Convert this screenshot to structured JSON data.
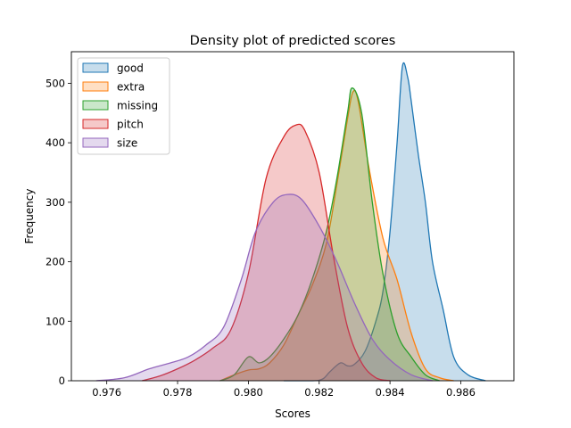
{
  "chart_data": {
    "type": "area",
    "title": "Density plot of predicted scores",
    "xlabel": "Scores",
    "ylabel": "Frequency",
    "xlim": [
      0.975,
      0.9875
    ],
    "ylim": [
      0,
      553
    ],
    "xticks": [
      0.976,
      0.978,
      0.98,
      0.982,
      0.984,
      0.986
    ],
    "xtick_labels": [
      "0.976",
      "0.978",
      "0.980",
      "0.982",
      "0.984",
      "0.986"
    ],
    "yticks": [
      0,
      100,
      200,
      300,
      400,
      500
    ],
    "ytick_labels": [
      "0",
      "100",
      "200",
      "300",
      "400",
      "500"
    ],
    "grid": false,
    "legend_position": "upper-left",
    "series": [
      {
        "name": "good",
        "color": "#1f77b4",
        "points": [
          [
            0.981,
            0
          ],
          [
            0.9818,
            0
          ],
          [
            0.9821,
            3
          ],
          [
            0.9823,
            15
          ],
          [
            0.9826,
            30
          ],
          [
            0.9828,
            25
          ],
          [
            0.983,
            28
          ],
          [
            0.9833,
            50
          ],
          [
            0.9836,
            100
          ],
          [
            0.9838,
            150
          ],
          [
            0.984,
            250
          ],
          [
            0.9842,
            400
          ],
          [
            0.98435,
            528
          ],
          [
            0.9845,
            510
          ],
          [
            0.9846,
            470
          ],
          [
            0.9848,
            380
          ],
          [
            0.985,
            300
          ],
          [
            0.9852,
            200
          ],
          [
            0.9855,
            120
          ],
          [
            0.9858,
            40
          ],
          [
            0.9862,
            10
          ],
          [
            0.9867,
            0
          ]
        ]
      },
      {
        "name": "extra",
        "color": "#ff7f0e",
        "points": [
          [
            0.9792,
            0
          ],
          [
            0.9796,
            10
          ],
          [
            0.98,
            18
          ],
          [
            0.9803,
            20
          ],
          [
            0.9806,
            30
          ],
          [
            0.981,
            60
          ],
          [
            0.9814,
            110
          ],
          [
            0.9818,
            160
          ],
          [
            0.9822,
            230
          ],
          [
            0.9825,
            330
          ],
          [
            0.9828,
            440
          ],
          [
            0.98295,
            485
          ],
          [
            0.9831,
            470
          ],
          [
            0.9834,
            360
          ],
          [
            0.9838,
            240
          ],
          [
            0.9842,
            170
          ],
          [
            0.9846,
            80
          ],
          [
            0.985,
            20
          ],
          [
            0.9854,
            5
          ],
          [
            0.9858,
            0
          ]
        ]
      },
      {
        "name": "missing",
        "color": "#2ca02c",
        "points": [
          [
            0.9792,
            0
          ],
          [
            0.9796,
            10
          ],
          [
            0.98,
            40
          ],
          [
            0.9803,
            30
          ],
          [
            0.9806,
            40
          ],
          [
            0.981,
            70
          ],
          [
            0.9814,
            110
          ],
          [
            0.9818,
            170
          ],
          [
            0.9822,
            250
          ],
          [
            0.9825,
            340
          ],
          [
            0.9828,
            450
          ],
          [
            0.98293,
            492
          ],
          [
            0.9832,
            450
          ],
          [
            0.9835,
            300
          ],
          [
            0.9838,
            180
          ],
          [
            0.9842,
            80
          ],
          [
            0.9846,
            40
          ],
          [
            0.985,
            10
          ],
          [
            0.9854,
            0
          ]
        ]
      },
      {
        "name": "pitch",
        "color": "#d62728",
        "points": [
          [
            0.977,
            0
          ],
          [
            0.9775,
            8
          ],
          [
            0.978,
            20
          ],
          [
            0.9785,
            35
          ],
          [
            0.979,
            55
          ],
          [
            0.9795,
            85
          ],
          [
            0.98,
            180
          ],
          [
            0.9805,
            340
          ],
          [
            0.981,
            410
          ],
          [
            0.98135,
            430
          ],
          [
            0.9816,
            420
          ],
          [
            0.982,
            350
          ],
          [
            0.9824,
            210
          ],
          [
            0.9828,
            90
          ],
          [
            0.9832,
            30
          ],
          [
            0.9836,
            5
          ],
          [
            0.984,
            0
          ]
        ]
      },
      {
        "name": "size",
        "color": "#9467bd",
        "points": [
          [
            0.9757,
            0
          ],
          [
            0.9765,
            5
          ],
          [
            0.9772,
            20
          ],
          [
            0.9778,
            30
          ],
          [
            0.9783,
            40
          ],
          [
            0.9788,
            60
          ],
          [
            0.9793,
            90
          ],
          [
            0.9798,
            170
          ],
          [
            0.9802,
            250
          ],
          [
            0.9807,
            300
          ],
          [
            0.9811,
            313
          ],
          [
            0.9815,
            305
          ],
          [
            0.982,
            260
          ],
          [
            0.9825,
            200
          ],
          [
            0.983,
            130
          ],
          [
            0.9835,
            70
          ],
          [
            0.984,
            35
          ],
          [
            0.9846,
            10
          ],
          [
            0.9852,
            0
          ]
        ]
      }
    ]
  }
}
